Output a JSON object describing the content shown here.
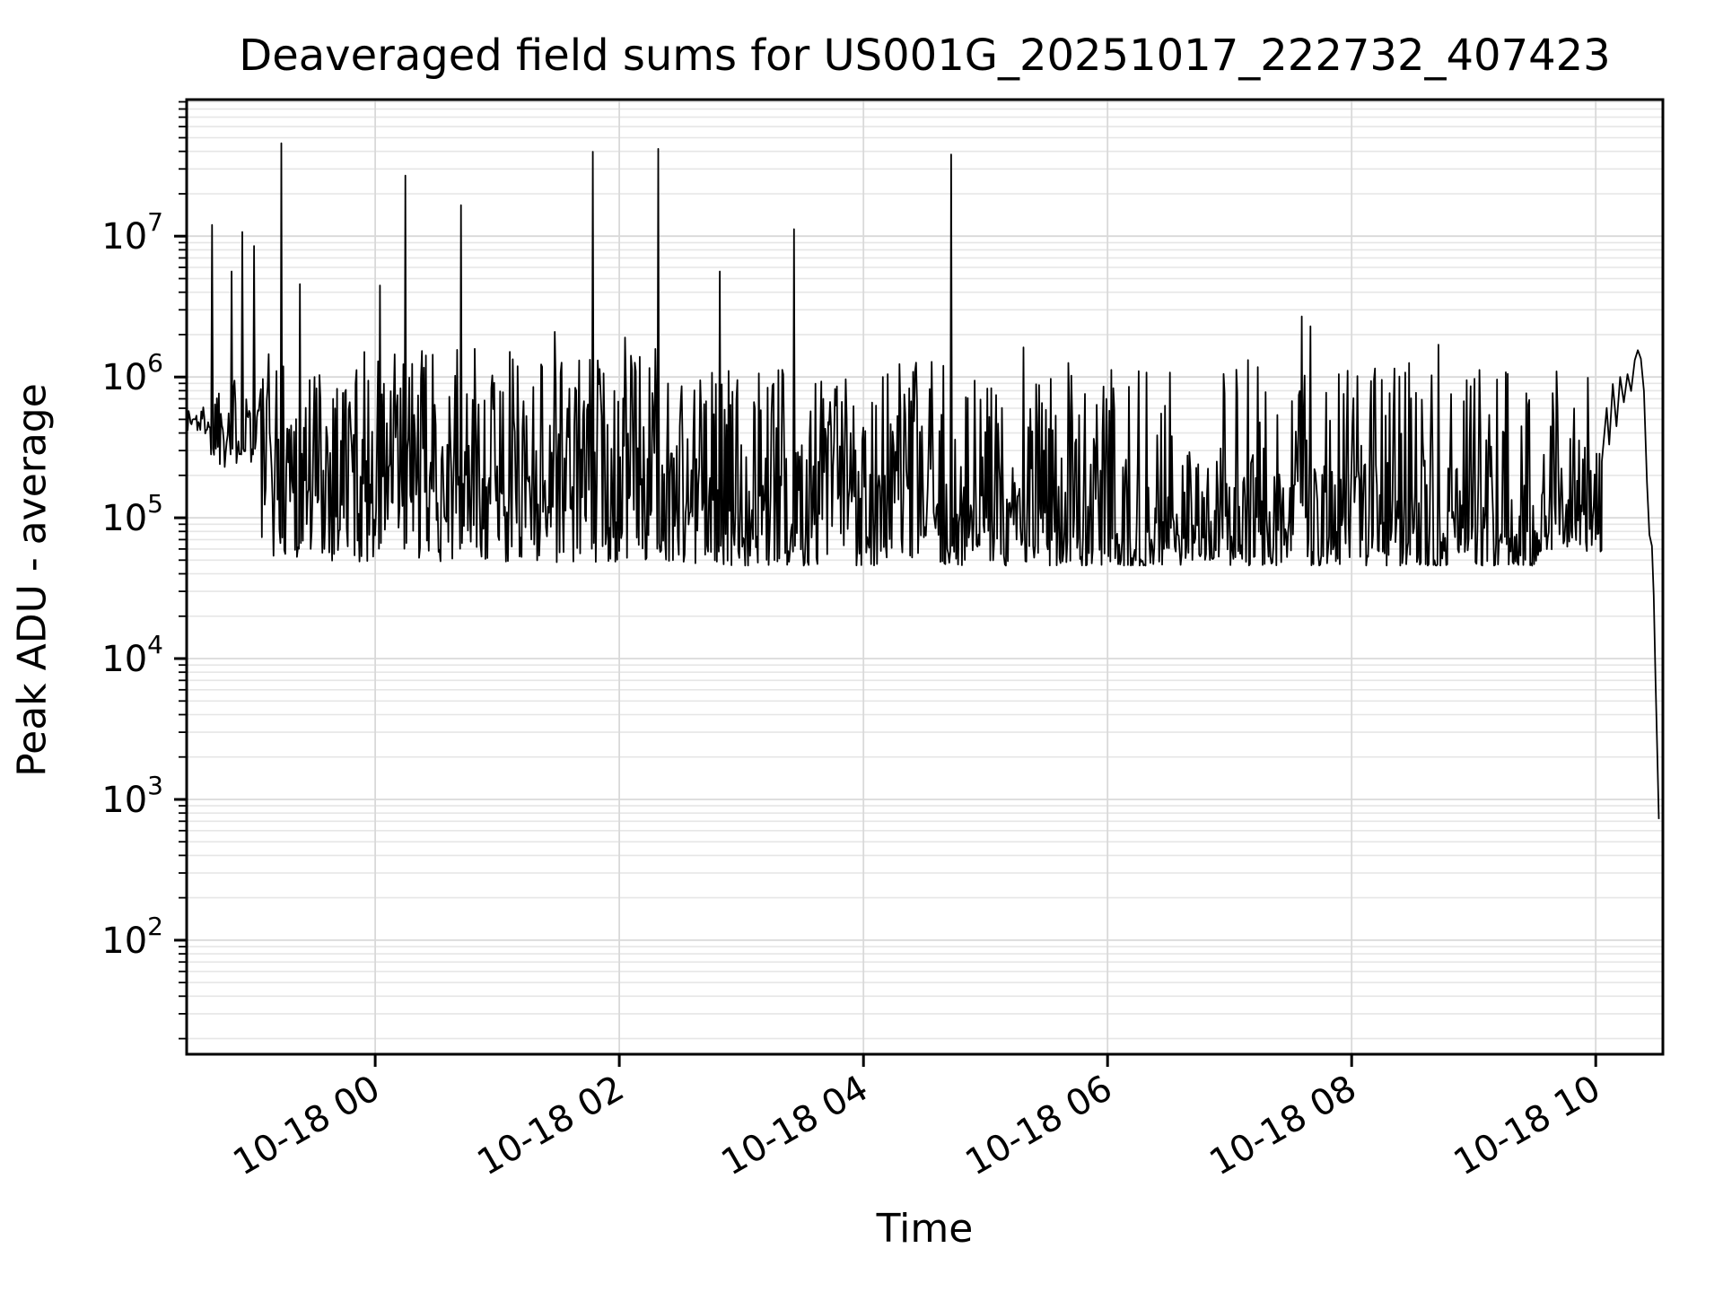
{
  "page": {
    "background": "#ffffff"
  },
  "chart_data": {
    "type": "line",
    "title": "Deaveraged field sums for US001G_20251017_222732_407423",
    "xlabel": "Time",
    "ylabel": "Peak ADU - average",
    "line": {
      "color": "#000000",
      "width": 1.8
    },
    "grid": {
      "show": true,
      "major_color": "#d9d9d9",
      "minor_color": "#e6e6e6"
    },
    "axes_color": "#000000",
    "x_axis": {
      "type": "time",
      "tick_labels": [
        "10-18 00",
        "10-18 02",
        "10-18 04",
        "10-18 06",
        "10-18 08",
        "10-18 10"
      ],
      "tick_hours": [
        0,
        2,
        4,
        6,
        8,
        10
      ],
      "range_hours": [
        -1.545,
        10.55
      ],
      "label_rotation_deg": 30
    },
    "y_axis": {
      "scale": "log",
      "tick_exponents": [
        7,
        6,
        5,
        4,
        3,
        2
      ],
      "range_log10": [
        1.19,
        7.97
      ]
    },
    "series": {
      "name": "peak_adu_minus_average",
      "sample_step_hours": 0.008,
      "noise_seed": 1337,
      "baseline_segments": [
        [
          -1.545,
          -1.36,
          5.58,
          0.22,
          1.0
        ],
        [
          -1.36,
          -0.93,
          5.35,
          0.65,
          0.9
        ],
        [
          -0.93,
          -0.72,
          4.72,
          1.5,
          1.2
        ],
        [
          -0.72,
          2.35,
          4.68,
          1.52,
          1.25
        ],
        [
          2.35,
          4.75,
          4.66,
          1.45,
          1.55
        ],
        [
          4.75,
          6.6,
          4.66,
          1.4,
          1.95
        ],
        [
          6.6,
          6.95,
          4.7,
          0.8,
          1.8
        ],
        [
          6.95,
          9.55,
          4.66,
          1.42,
          2.0
        ],
        [
          9.55,
          10.05,
          4.76,
          1.3,
          1.65
        ]
      ],
      "spike_points_log10": [
        [
          -1.34,
          7.08
        ],
        [
          -1.18,
          6.75
        ],
        [
          -1.09,
          7.03
        ],
        [
          -0.99,
          6.93
        ],
        [
          -0.77,
          7.66
        ],
        [
          -0.62,
          6.66
        ],
        [
          0.04,
          6.65
        ],
        [
          0.25,
          7.43
        ],
        [
          0.7,
          7.22
        ],
        [
          1.47,
          6.32
        ],
        [
          1.78,
          7.6
        ],
        [
          2.05,
          6.28
        ],
        [
          2.32,
          7.62
        ],
        [
          2.82,
          6.75
        ],
        [
          3.43,
          7.05
        ],
        [
          4.72,
          7.58
        ],
        [
          5.31,
          6.21
        ],
        [
          5.68,
          6.1
        ],
        [
          6.03,
          6.05
        ],
        [
          7.15,
          6.12
        ],
        [
          7.59,
          6.43
        ],
        [
          7.66,
          6.36
        ],
        [
          8.25,
          5.98
        ],
        [
          8.35,
          6.06
        ],
        [
          8.47,
          6.1
        ],
        [
          8.71,
          6.23
        ],
        [
          9.05,
          6.05
        ],
        [
          9.68,
          6.04
        ]
      ],
      "end_profile_points_log10": [
        [
          10.05,
          5.4
        ],
        [
          10.09,
          5.78
        ],
        [
          10.11,
          5.52
        ],
        [
          10.14,
          5.95
        ],
        [
          10.17,
          5.65
        ],
        [
          10.2,
          6.0
        ],
        [
          10.23,
          5.82
        ],
        [
          10.26,
          6.02
        ],
        [
          10.29,
          5.9
        ],
        [
          10.32,
          6.12
        ],
        [
          10.345,
          6.19
        ],
        [
          10.37,
          6.13
        ],
        [
          10.395,
          5.9
        ],
        [
          10.42,
          5.25
        ],
        [
          10.44,
          4.88
        ],
        [
          10.46,
          4.8
        ],
        [
          10.475,
          4.45
        ],
        [
          10.49,
          3.85
        ],
        [
          10.505,
          3.3
        ],
        [
          10.517,
          2.86
        ]
      ]
    }
  }
}
